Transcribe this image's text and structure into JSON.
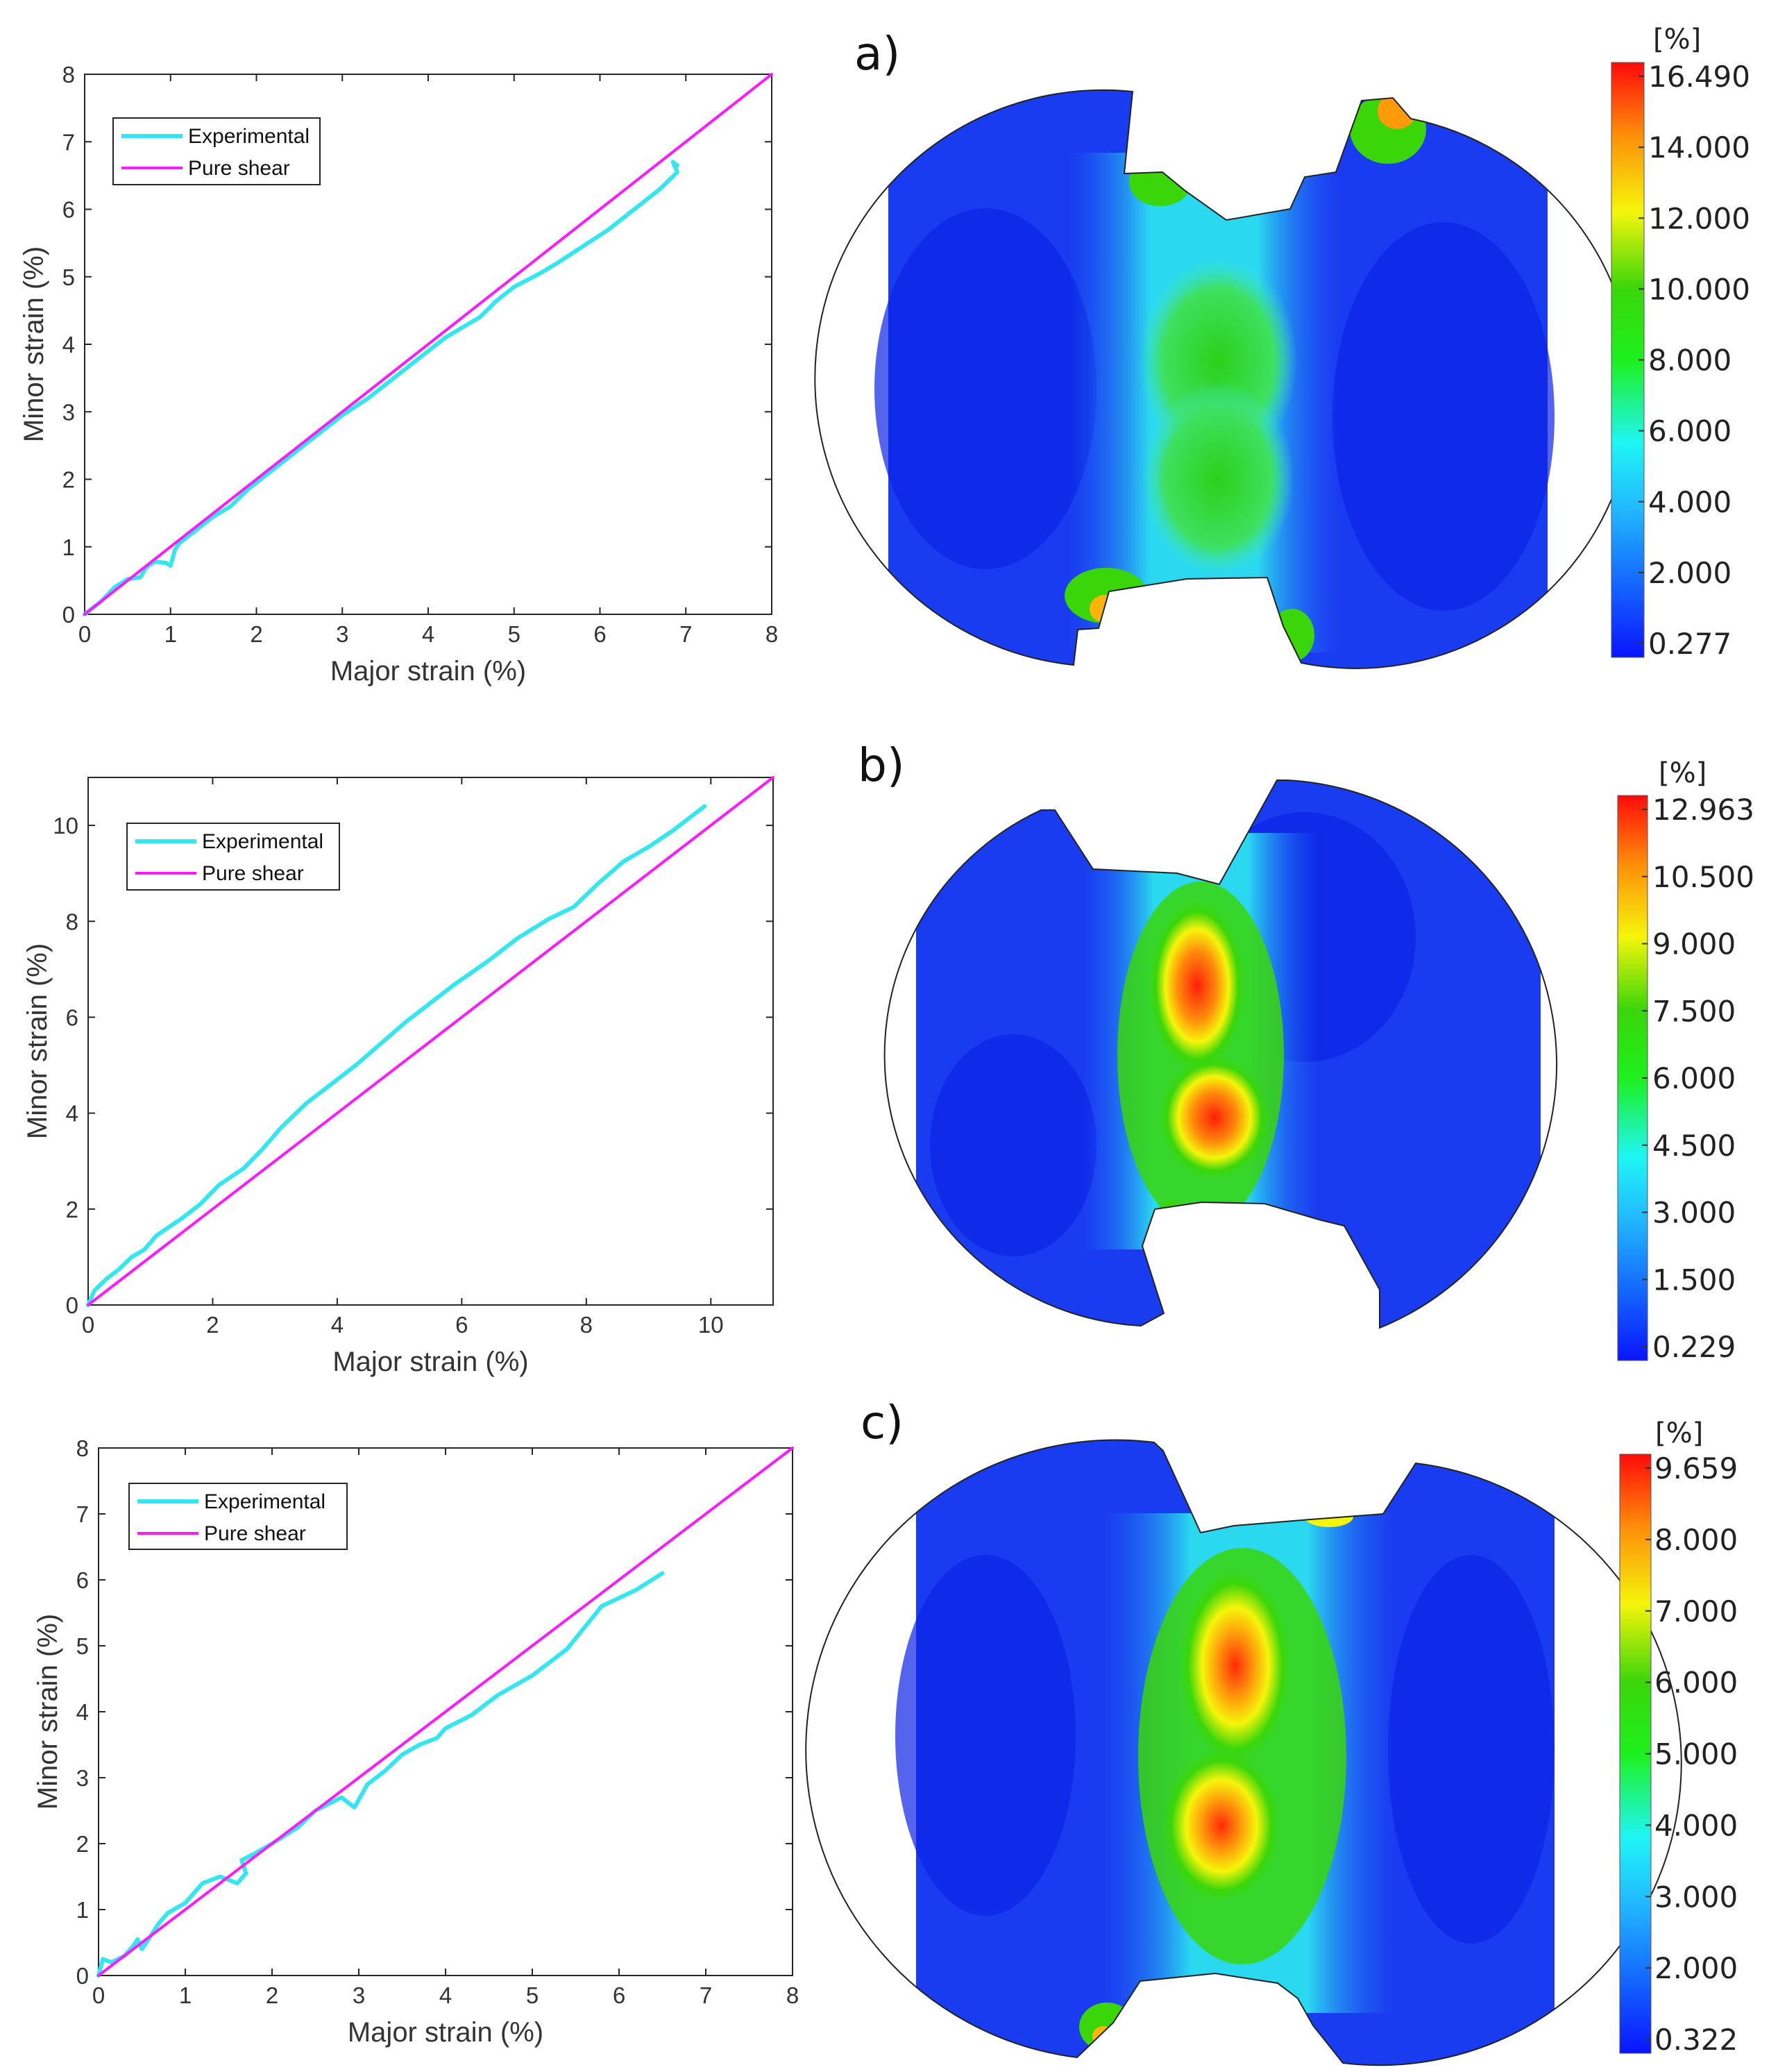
{
  "chart_data": [
    {
      "type": "line",
      "panel": "a)",
      "xlabel": "Major strain (%)",
      "ylabel": "Minor strain (%)",
      "xlim": [
        0,
        8
      ],
      "ylim": [
        0,
        8
      ],
      "xticks": [
        "0",
        "1",
        "2",
        "3",
        "4",
        "5",
        "6",
        "7",
        "8"
      ],
      "yticks": [
        "0",
        "1",
        "2",
        "3",
        "4",
        "5",
        "6",
        "7",
        "8"
      ],
      "legend": "top-left",
      "series": [
        {
          "name": "Experimental",
          "color": "#33e6f0",
          "x": [
            0,
            0.2,
            0.35,
            0.5,
            0.65,
            0.72,
            0.82,
            0.95,
            1.0,
            1.05,
            1.1,
            1.3,
            1.5,
            1.7,
            1.9,
            2.1,
            2.3,
            2.5,
            2.65,
            2.8,
            3.0,
            3.3,
            3.6,
            3.9,
            4.2,
            4.6,
            4.8,
            5.0,
            5.3,
            5.5,
            5.8,
            6.1,
            6.4,
            6.7,
            6.9,
            6.85,
            6.9
          ],
          "y": [
            0,
            0.2,
            0.4,
            0.52,
            0.55,
            0.7,
            0.78,
            0.76,
            0.72,
            0.95,
            1.05,
            1.25,
            1.45,
            1.6,
            1.85,
            2.05,
            2.25,
            2.45,
            2.6,
            2.75,
            2.95,
            3.2,
            3.5,
            3.8,
            4.1,
            4.4,
            4.65,
            4.85,
            5.05,
            5.2,
            5.45,
            5.7,
            6.0,
            6.3,
            6.55,
            6.7,
            6.65
          ]
        },
        {
          "name": "Pure shear",
          "color": "#ff19ff",
          "x": [
            0,
            8
          ],
          "y": [
            0,
            8
          ]
        }
      ]
    },
    {
      "type": "line",
      "panel": "b)",
      "xlabel": "Major strain (%)",
      "ylabel": "Minor strain (%)",
      "xlim": [
        0,
        11
      ],
      "ylim": [
        0,
        11
      ],
      "xticks": [
        "0",
        "2",
        "4",
        "6",
        "8",
        "10"
      ],
      "yticks": [
        "0",
        "2",
        "4",
        "6",
        "8",
        "10"
      ],
      "legend": "top-left",
      "series": [
        {
          "name": "Experimental",
          "color": "#33e6f0",
          "x": [
            0,
            0.1,
            0.3,
            0.5,
            0.7,
            0.9,
            1.1,
            1.5,
            1.8,
            2.1,
            2.5,
            2.8,
            3.1,
            3.5,
            3.9,
            4.3,
            4.7,
            5.1,
            5.5,
            5.9,
            6.4,
            6.9,
            7.4,
            7.8,
            8.2,
            8.6,
            9.0,
            9.4,
            9.7,
            9.9
          ],
          "y": [
            0,
            0.3,
            0.55,
            0.75,
            1.0,
            1.15,
            1.45,
            1.8,
            2.1,
            2.5,
            2.85,
            3.25,
            3.7,
            4.2,
            4.6,
            5.0,
            5.45,
            5.9,
            6.3,
            6.7,
            7.15,
            7.65,
            8.05,
            8.3,
            8.8,
            9.25,
            9.55,
            9.9,
            10.2,
            10.4
          ]
        },
        {
          "name": "Pure shear",
          "color": "#ff19ff",
          "x": [
            0,
            11
          ],
          "y": [
            0,
            11
          ]
        }
      ]
    },
    {
      "type": "line",
      "panel": "c)",
      "xlabel": "Major strain (%)",
      "ylabel": "Minor strain (%)",
      "xlim": [
        0,
        8
      ],
      "ylim": [
        0,
        8
      ],
      "xticks": [
        "0",
        "1",
        "2",
        "3",
        "4",
        "5",
        "6",
        "7",
        "8"
      ],
      "yticks": [
        "0",
        "1",
        "2",
        "3",
        "4",
        "5",
        "6",
        "7",
        "8"
      ],
      "legend": "top-left",
      "series": [
        {
          "name": "Experimental",
          "color": "#33e6f0",
          "x": [
            0,
            0.05,
            0.15,
            0.3,
            0.4,
            0.45,
            0.5,
            0.6,
            0.7,
            0.8,
            1.0,
            1.2,
            1.3,
            1.4,
            1.6,
            1.7,
            1.65,
            1.8,
            2.0,
            2.3,
            2.5,
            2.8,
            2.95,
            3.1,
            3.3,
            3.5,
            3.7,
            3.9,
            4.0,
            4.3,
            4.6,
            5.0,
            5.4,
            5.8,
            6.2,
            6.5
          ],
          "y": [
            0,
            0.25,
            0.2,
            0.3,
            0.45,
            0.55,
            0.4,
            0.6,
            0.8,
            0.95,
            1.1,
            1.4,
            1.45,
            1.5,
            1.4,
            1.55,
            1.75,
            1.85,
            2.0,
            2.25,
            2.5,
            2.7,
            2.55,
            2.9,
            3.1,
            3.35,
            3.5,
            3.6,
            3.75,
            3.95,
            4.25,
            4.55,
            4.95,
            5.6,
            5.85,
            6.1
          ]
        },
        {
          "name": "Pure shear",
          "color": "#ff19ff",
          "x": [
            0,
            8
          ],
          "y": [
            0,
            8
          ]
        }
      ]
    }
  ],
  "contour_panels": [
    {
      "label": "a)",
      "unit": "[%]",
      "scale": [
        "16.490",
        "14.000",
        "12.000",
        "10.000",
        "8.000",
        "6.000",
        "4.000",
        "2.000",
        "0.277"
      ]
    },
    {
      "label": "b)",
      "unit": "[%]",
      "scale": [
        "12.963",
        "10.500",
        "9.000",
        "7.500",
        "6.000",
        "4.500",
        "3.000",
        "1.500",
        "0.229"
      ]
    },
    {
      "label": "c)",
      "unit": "[%]",
      "scale": [
        "9.659",
        "8.000",
        "7.000",
        "6.000",
        "5.000",
        "4.000",
        "3.000",
        "2.000",
        "0.322"
      ]
    }
  ]
}
